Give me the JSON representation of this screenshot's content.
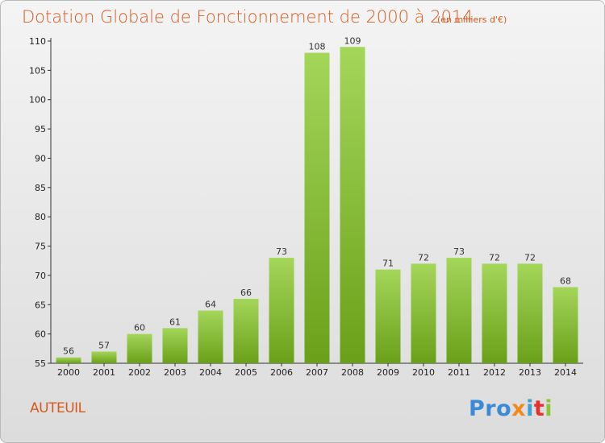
{
  "title": "Dotation Globale de Fonctionnement de 2000 à 2014",
  "unit_note": "(en milliers d'€)",
  "place": "AUTEUIL",
  "logo": {
    "text": "Proxiti",
    "parts": [
      "Pro",
      "x",
      "i",
      "t",
      "i"
    ]
  },
  "colors": {
    "title": "#d65a1f",
    "bar_top": "#a4d65a",
    "bar_bottom": "#6aa019",
    "background_top": "#f4f4f4",
    "background_bottom": "#dcdcdc"
  },
  "chart_data": {
    "type": "bar",
    "title": "Dotation Globale de Fonctionnement de 2000 à 2014",
    "subtitle": "(en milliers d'€)",
    "xlabel": "",
    "ylabel": "",
    "categories": [
      "2000",
      "2001",
      "2002",
      "2003",
      "2004",
      "2005",
      "2006",
      "2007",
      "2008",
      "2009",
      "2010",
      "2011",
      "2012",
      "2013",
      "2014"
    ],
    "values": [
      56,
      57,
      60,
      61,
      64,
      66,
      73,
      108,
      109,
      71,
      72,
      73,
      72,
      72,
      68
    ],
    "data_labels": [
      "56",
      "57",
      "60",
      "61",
      "64",
      "66",
      "73",
      "108",
      "109",
      "71",
      "72",
      "73",
      "72",
      "72",
      "68"
    ],
    "ylim": [
      55,
      110
    ],
    "yticks": [
      55,
      60,
      65,
      70,
      75,
      80,
      85,
      90,
      95,
      100,
      105,
      110
    ],
    "grid": false,
    "legend": "none"
  }
}
